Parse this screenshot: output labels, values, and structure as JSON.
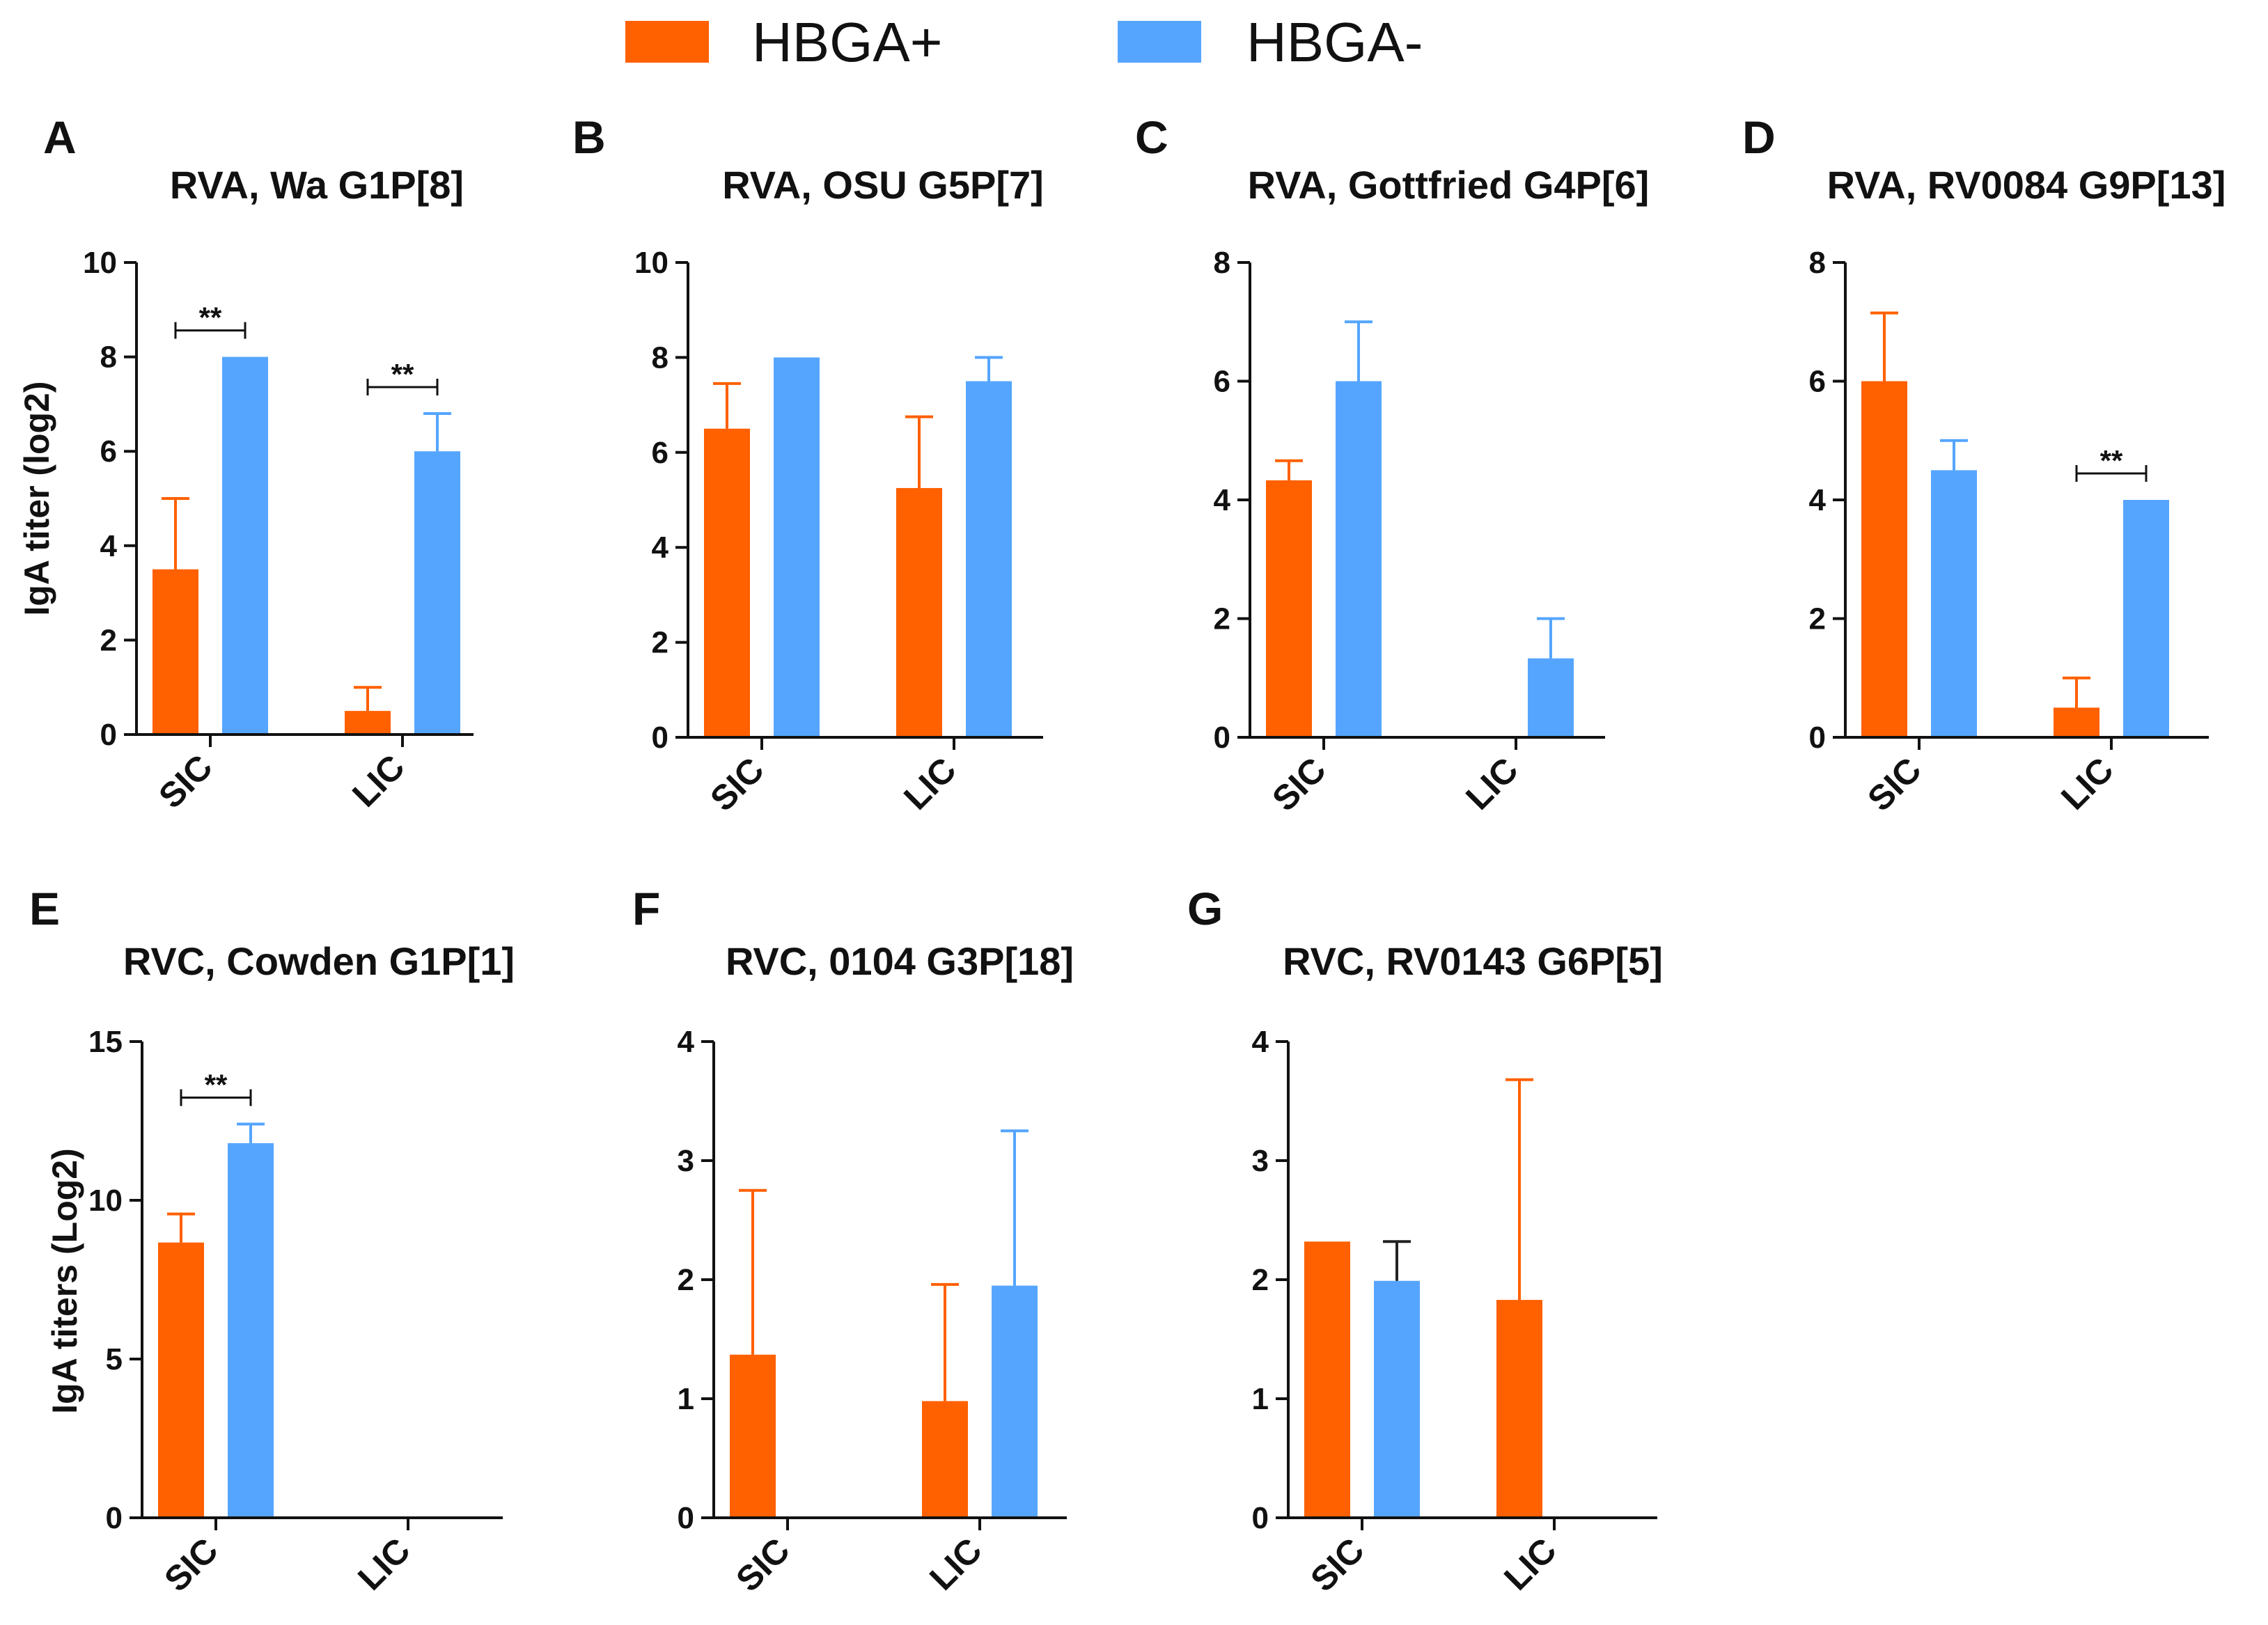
{
  "legend": [
    {
      "label": "HBGA+",
      "color": "#ff6000"
    },
    {
      "label": "HBGA-",
      "color": "#55a5ff"
    }
  ],
  "colors": {
    "hbga_pos": "#ff6000",
    "hbga_neg": "#55a5ff",
    "axis": "#111111",
    "error_black": "#222222"
  },
  "chart_data": [
    {
      "panel": "A",
      "type": "bar",
      "title": "RVA, Wa G1P[8]",
      "ylabel": "IgA titer (log2)",
      "ylim": [
        0,
        10
      ],
      "yticks": [
        0,
        2,
        4,
        6,
        8,
        10
      ],
      "categories": [
        "SIC",
        "LIC"
      ],
      "series": [
        {
          "name": "HBGA+",
          "values": [
            3.5,
            0.5
          ],
          "errors": [
            1.5,
            0.5
          ]
        },
        {
          "name": "HBGA-",
          "values": [
            8,
            6
          ],
          "errors": [
            0,
            0.8
          ]
        }
      ],
      "annotations": [
        {
          "category": "SIC",
          "text": "**"
        },
        {
          "category": "LIC",
          "text": "**"
        }
      ]
    },
    {
      "panel": "B",
      "type": "bar",
      "title": "RVA, OSU G5P[7]",
      "ylabel": "",
      "ylim": [
        0,
        10
      ],
      "yticks": [
        0,
        2,
        4,
        6,
        8,
        10
      ],
      "categories": [
        "SIC",
        "LIC"
      ],
      "series": [
        {
          "name": "HBGA+",
          "values": [
            6.5,
            5.25
          ],
          "errors": [
            0.95,
            1.5
          ]
        },
        {
          "name": "HBGA-",
          "values": [
            8,
            7.5
          ],
          "errors": [
            0,
            0.5
          ]
        }
      ],
      "annotations": []
    },
    {
      "panel": "C",
      "type": "bar",
      "title": "RVA, Gottfried G4P[6]",
      "ylabel": "",
      "ylim": [
        0,
        8
      ],
      "yticks": [
        0,
        2,
        4,
        6,
        8
      ],
      "categories": [
        "SIC",
        "LIC"
      ],
      "series": [
        {
          "name": "HBGA+",
          "values": [
            4.33,
            0
          ],
          "errors": [
            0.33,
            0
          ]
        },
        {
          "name": "HBGA-",
          "values": [
            6,
            1.33
          ],
          "errors": [
            1,
            0.67
          ]
        }
      ],
      "annotations": []
    },
    {
      "panel": "D",
      "type": "bar",
      "title": "RVA, RV0084 G9P[13]",
      "ylabel": "",
      "ylim": [
        0,
        8
      ],
      "yticks": [
        0,
        2,
        4,
        6,
        8
      ],
      "categories": [
        "SIC",
        "LIC"
      ],
      "series": [
        {
          "name": "HBGA+",
          "values": [
            6,
            0.5
          ],
          "errors": [
            1.15,
            0.5
          ]
        },
        {
          "name": "HBGA-",
          "values": [
            4.5,
            4
          ],
          "errors": [
            0.5,
            0
          ]
        }
      ],
      "annotations": [
        {
          "category": "LIC",
          "text": "**"
        }
      ]
    },
    {
      "panel": "E",
      "type": "bar",
      "title": "RVC, Cowden G1P[1]",
      "ylabel": "IgA titers (Log2)",
      "ylim": [
        0,
        15
      ],
      "yticks": [
        0,
        5,
        10,
        15
      ],
      "categories": [
        "SIC",
        "LIC"
      ],
      "series": [
        {
          "name": "HBGA+",
          "values": [
            8.67,
            0
          ],
          "errors": [
            0.9,
            0
          ]
        },
        {
          "name": "HBGA-",
          "values": [
            11.8,
            0
          ],
          "errors": [
            0.6,
            0
          ]
        }
      ],
      "annotations": [
        {
          "category": "SIC",
          "text": "**"
        }
      ]
    },
    {
      "panel": "F",
      "type": "bar",
      "title": "RVC, 0104 G3P[18]",
      "ylabel": "",
      "ylim": [
        0,
        4
      ],
      "yticks": [
        0,
        1,
        2,
        3,
        4
      ],
      "categories": [
        "SIC",
        "LIC"
      ],
      "series": [
        {
          "name": "HBGA+",
          "values": [
            1.37,
            0.98
          ],
          "errors": [
            1.38,
            0.98
          ]
        },
        {
          "name": "HBGA-",
          "values": [
            0,
            1.95
          ],
          "errors": [
            0,
            1.3
          ]
        }
      ],
      "annotations": []
    },
    {
      "panel": "G",
      "type": "bar",
      "title": "RVC, RV0143 G6P[5]",
      "ylabel": "",
      "ylim": [
        0,
        4
      ],
      "yticks": [
        0,
        1,
        2,
        3,
        4
      ],
      "categories": [
        "SIC",
        "LIC"
      ],
      "series": [
        {
          "name": "HBGA+",
          "values": [
            2.32,
            1.83
          ],
          "errors": [
            0,
            1.85
          ]
        },
        {
          "name": "HBGA-",
          "values": [
            1.99,
            0
          ],
          "errors": [
            0.33,
            0
          ]
        }
      ],
      "annotations": []
    }
  ]
}
